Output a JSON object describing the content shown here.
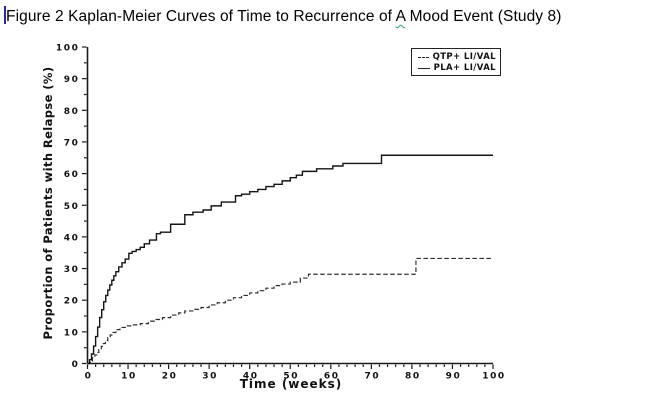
{
  "document": {
    "title": {
      "prefix": "Figure 2 Kaplan-Meier Curves of Time to Recurrence of ",
      "misspelled_word": "A",
      "suffix": " Mood Event (Study 8)"
    }
  },
  "chart_data": {
    "type": "line",
    "subtype": "kaplan-meier-step",
    "title": "Kaplan-Meier Curves of Time to Recurrence of A Mood Event (Study 8)",
    "xlabel": "Time (weeks)",
    "ylabel": "Proportion of Patients with Relapse (%)",
    "xlim": [
      0,
      100
    ],
    "ylim": [
      0,
      100
    ],
    "x_ticks": [
      0,
      10,
      20,
      30,
      40,
      50,
      60,
      70,
      80,
      90,
      100
    ],
    "x_minor_tick_step": 2,
    "y_ticks": [
      0,
      10,
      20,
      30,
      40,
      50,
      60,
      70,
      80,
      90,
      100
    ],
    "y_minor_tick_step": 5,
    "grid": false,
    "legend_position": "inside-top-right",
    "series": [
      {
        "name": "QTP+ LI/VAL",
        "line_style": "dashed",
        "color": "#2e2e2e",
        "step_points": [
          [
            0,
            0
          ],
          [
            0.7,
            0.8
          ],
          [
            1.2,
            1.8
          ],
          [
            1.8,
            2.7
          ],
          [
            2.3,
            3.5
          ],
          [
            2.8,
            4.4
          ],
          [
            3.4,
            5.4
          ],
          [
            3.9,
            6.3
          ],
          [
            4.4,
            7.2
          ],
          [
            5,
            8.2
          ],
          [
            5.6,
            9
          ],
          [
            6.3,
            9.8
          ],
          [
            7,
            10.7
          ],
          [
            8,
            11.4
          ],
          [
            9.5,
            11.9
          ],
          [
            11,
            12.2
          ],
          [
            13,
            12.6
          ],
          [
            15,
            13.4
          ],
          [
            16.5,
            13.9
          ],
          [
            18.5,
            14.5
          ],
          [
            20.5,
            15.3
          ],
          [
            22.5,
            16
          ],
          [
            24,
            16.6
          ],
          [
            26,
            17.1
          ],
          [
            28,
            17.7
          ],
          [
            30,
            18.5
          ],
          [
            32,
            19.2
          ],
          [
            34,
            20
          ],
          [
            36,
            20.8
          ],
          [
            38,
            21.5
          ],
          [
            40,
            22.3
          ],
          [
            42,
            23
          ],
          [
            44,
            23.8
          ],
          [
            46,
            24.6
          ],
          [
            48,
            25.1
          ],
          [
            50,
            25.7
          ],
          [
            52.5,
            27
          ],
          [
            54.5,
            28.2
          ],
          [
            81,
            33.2
          ],
          [
            100,
            33.2
          ]
        ]
      },
      {
        "name": "PLA+ LI/VAL",
        "line_style": "solid",
        "color": "#141414",
        "step_points": [
          [
            0,
            0
          ],
          [
            0.5,
            1.2
          ],
          [
            1,
            3
          ],
          [
            1.5,
            5.5
          ],
          [
            2,
            8.5
          ],
          [
            2.5,
            11.5
          ],
          [
            3,
            14.5
          ],
          [
            3.5,
            17
          ],
          [
            4,
            19.5
          ],
          [
            4.5,
            21.5
          ],
          [
            5,
            23.2
          ],
          [
            5.5,
            24.8
          ],
          [
            6,
            26.3
          ],
          [
            6.5,
            27.7
          ],
          [
            7,
            29
          ],
          [
            7.7,
            30.5
          ],
          [
            8.5,
            31.8
          ],
          [
            9.3,
            33
          ],
          [
            10.2,
            34.8
          ],
          [
            11,
            35.4
          ],
          [
            12,
            36
          ],
          [
            13,
            36.7
          ],
          [
            14,
            37.8
          ],
          [
            15.3,
            39
          ],
          [
            17,
            41
          ],
          [
            18,
            41.5
          ],
          [
            20.5,
            44
          ],
          [
            24,
            47
          ],
          [
            26,
            47.8
          ],
          [
            28.5,
            48.5
          ],
          [
            30.5,
            49.8
          ],
          [
            33,
            51
          ],
          [
            36.5,
            53
          ],
          [
            38,
            53.5
          ],
          [
            40,
            54.3
          ],
          [
            42,
            55
          ],
          [
            44,
            55.9
          ],
          [
            46,
            56.6
          ],
          [
            48,
            57.7
          ],
          [
            50,
            58.7
          ],
          [
            51.5,
            59.5
          ],
          [
            53,
            60.7
          ],
          [
            56.5,
            61.5
          ],
          [
            60.5,
            62.4
          ],
          [
            63,
            63.2
          ],
          [
            72.5,
            65.8
          ],
          [
            100,
            65.8
          ]
        ]
      }
    ]
  }
}
